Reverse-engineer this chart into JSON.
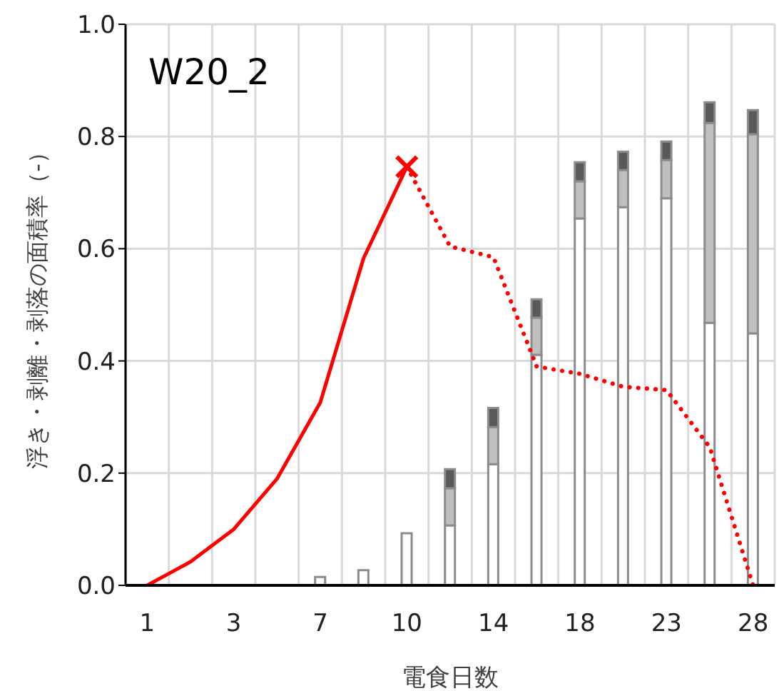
{
  "chart_data": {
    "type": "bar",
    "title": "W20_2",
    "xlabel": "電食日数",
    "ylabel": "浮き・剥離・剥落の面積率（-）",
    "categories": [
      "1",
      null,
      "3",
      null,
      "7",
      null,
      "10",
      null,
      "14",
      null,
      "18",
      null,
      "23",
      null,
      "28"
    ],
    "stacked": true,
    "series": [
      {
        "type": "bar",
        "color": "#ffffff",
        "values": [
          null,
          null,
          null,
          null,
          0.015,
          0.027,
          0.093,
          0.107,
          0.216,
          0.411,
          0.654,
          0.674,
          0.69,
          0.468,
          0.449
        ]
      },
      {
        "type": "bar",
        "color": "#bfbfbf",
        "values": [
          null,
          null,
          null,
          null,
          null,
          null,
          null,
          0.066,
          0.066,
          0.066,
          0.066,
          0.066,
          0.068,
          0.356,
          0.355
        ]
      },
      {
        "type": "bar",
        "color": "#595959",
        "values": [
          null,
          null,
          null,
          null,
          null,
          null,
          null,
          0.034,
          0.034,
          0.033,
          0.034,
          0.033,
          0.033,
          0.037,
          0.043
        ]
      },
      {
        "type": "line",
        "color": "#ff0000",
        "line_style": "solid",
        "marker": "none",
        "values": [
          0,
          0.042,
          0.1,
          0.19,
          0.326,
          0.583,
          0.746,
          null,
          null,
          null,
          null,
          null,
          null,
          null,
          null
        ]
      },
      {
        "type": "line",
        "color": "#ff0000",
        "line_style": "dotted",
        "marker": "none",
        "values": [
          null,
          null,
          null,
          null,
          null,
          null,
          0.746,
          0.604,
          0.585,
          0.39,
          0.377,
          0.354,
          0.348,
          0.246,
          0
        ]
      },
      {
        "type": "scatter",
        "color": "#ff0000",
        "marker": "cross",
        "values": [
          null,
          null,
          null,
          null,
          null,
          null,
          0.746,
          null,
          null,
          null,
          null,
          null,
          null,
          null,
          null
        ]
      }
    ],
    "ylim": [
      0,
      1
    ],
    "yticks": [
      {
        "value": 0,
        "label": "0.0"
      },
      {
        "value": 0.2,
        "label": "0.2"
      },
      {
        "value": 0.4,
        "label": "0.4"
      },
      {
        "value": 0.6,
        "label": "0.6"
      },
      {
        "value": 0.8,
        "label": "0.8"
      },
      {
        "value": 1,
        "label": "1.0"
      }
    ],
    "grid": true
  }
}
